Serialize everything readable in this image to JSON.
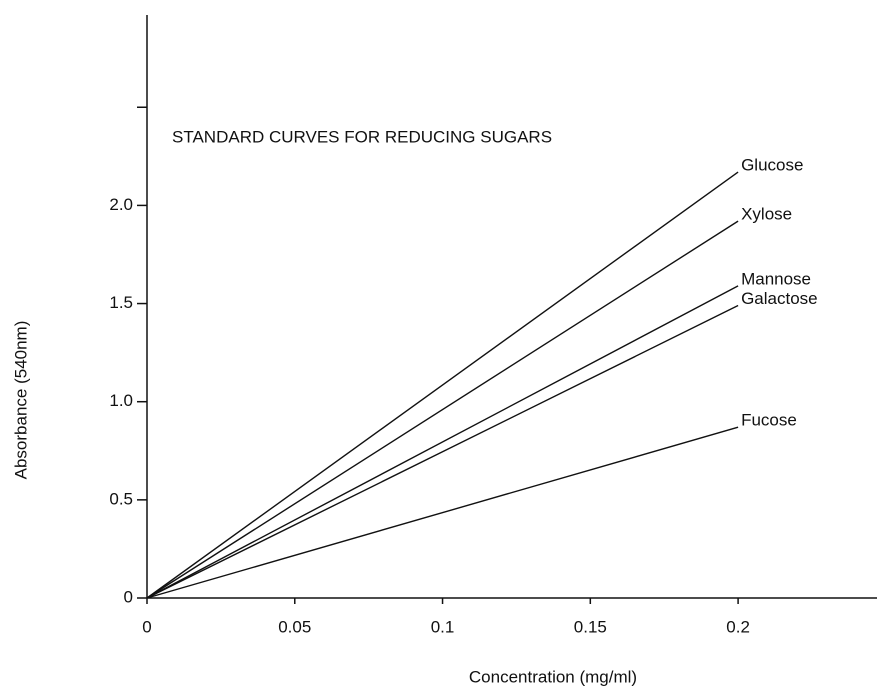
{
  "chart_data": {
    "type": "line",
    "title": "STANDARD CURVES FOR REDUCING SUGARS",
    "x_label": "Concentration (mg/ml)",
    "y_label": "Absorbance (540nm)",
    "x": [
      0,
      0.2
    ],
    "series": [
      {
        "name": "Glucose",
        "color": "#111111",
        "values": [
          0,
          2.17
        ]
      },
      {
        "name": "Xylose",
        "color": "#111111",
        "values": [
          0,
          1.92
        ]
      },
      {
        "name": "Mannose",
        "color": "#111111",
        "values": [
          0,
          1.59
        ]
      },
      {
        "name": "Galactose",
        "color": "#111111",
        "values": [
          0,
          1.49
        ]
      },
      {
        "name": "Fucose",
        "color": "#111111",
        "values": [
          0,
          0.87
        ]
      }
    ],
    "xlim": [
      0,
      0.247
    ],
    "ylim": [
      0,
      2.97
    ],
    "xticks": [
      0,
      0.05,
      0.1,
      0.15,
      0.2
    ],
    "yticks": [
      0,
      0.5,
      {
        "value": 1.0,
        "label": "1.0"
      },
      1.5,
      {
        "value": 2.0,
        "label": "2.0"
      },
      {
        "value": 2.5,
        "label": null
      }
    ],
    "grid": false
  }
}
